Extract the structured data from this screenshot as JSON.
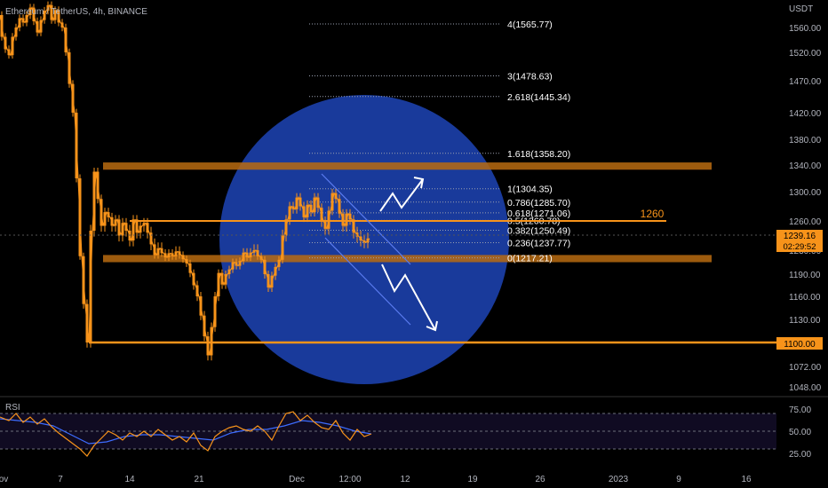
{
  "header": {
    "symbol": "Ethereum / TetherUS, 4h, BINANCE",
    "currency": "USDT"
  },
  "colors": {
    "background": "#000000",
    "candle": "#f7931a",
    "zone": "#b86b10",
    "level_line": "#f7931a",
    "circle": "#1b3fa8",
    "channel": "#4a6fe0",
    "rsi_line": "#f7931a",
    "rsi_ma": "#3d6cff",
    "axis_text": "#b2b5be"
  },
  "chart_data": {
    "type": "candlestick",
    "price_axis": {
      "ticks": [
        "1560.00",
        "1520.00",
        "1470.00",
        "1420.00",
        "1380.00",
        "1340.00",
        "1300.00",
        "1260.00",
        "1230.00",
        "1190.00",
        "1160.00",
        "1130.00",
        "1100.00",
        "1072.00",
        "1048.00"
      ],
      "values": [
        1560,
        1520,
        1470,
        1420,
        1380,
        1340,
        1300,
        1260,
        1230,
        1190,
        1160,
        1130,
        1100,
        1072,
        1048
      ]
    },
    "time_axis": {
      "labels": [
        "ov",
        "7",
        "14",
        "21",
        "Dec",
        "12:00",
        "12",
        "19",
        "26",
        "2023",
        "9",
        "16"
      ]
    },
    "zones": [
      {
        "name": "resistance-zone",
        "from": 1333,
        "to": 1344
      },
      {
        "name": "support-zone",
        "from": 1210,
        "to": 1222
      }
    ],
    "levels": [
      {
        "name": "level-1260",
        "value": 1260,
        "label": "1260"
      },
      {
        "name": "level-1100",
        "value": 1100,
        "label": "1100.00"
      }
    ],
    "fibonacci": [
      {
        "label": "4(1565.77)",
        "value": 1565.77
      },
      {
        "label": "3(1478.63)",
        "value": 1478.63
      },
      {
        "label": "2.618(1445.34)",
        "value": 1445.34
      },
      {
        "label": "1.618(1358.20)",
        "value": 1358.2
      },
      {
        "label": "1(1304.35)",
        "value": 1304.35
      },
      {
        "label": "0.786(1285.70)",
        "value": 1285.7
      },
      {
        "label": "0.618(1271.06)",
        "value": 1271.06
      },
      {
        "label": "0.5(1260.78)",
        "value": 1260.78
      },
      {
        "label": "0.382(1250.49)",
        "value": 1250.49
      },
      {
        "label": "0.236(1237.77)",
        "value": 1237.77
      },
      {
        "label": "0(1217.21)",
        "value": 1217.21
      }
    ],
    "current_price": {
      "value": 1239.16,
      "label": "1239.16",
      "countdown": "02:29:52"
    },
    "price_path": [
      [
        0,
        1580
      ],
      [
        4,
        1545
      ],
      [
        8,
        1525
      ],
      [
        12,
        1515
      ],
      [
        16,
        1545
      ],
      [
        20,
        1560
      ],
      [
        24,
        1575
      ],
      [
        28,
        1568
      ],
      [
        32,
        1580
      ],
      [
        36,
        1592
      ],
      [
        40,
        1570
      ],
      [
        44,
        1552
      ],
      [
        48,
        1572
      ],
      [
        52,
        1587
      ],
      [
        56,
        1596
      ],
      [
        60,
        1572
      ],
      [
        64,
        1588
      ],
      [
        68,
        1568
      ],
      [
        72,
        1560
      ],
      [
        76,
        1520
      ],
      [
        80,
        1465
      ],
      [
        84,
        1420
      ],
      [
        88,
        1320
      ],
      [
        92,
        1220
      ],
      [
        96,
        1150
      ],
      [
        100,
        1100
      ],
      [
        104,
        1250
      ],
      [
        108,
        1330
      ],
      [
        112,
        1290
      ],
      [
        116,
        1255
      ],
      [
        120,
        1272
      ],
      [
        124,
        1265
      ],
      [
        128,
        1255
      ],
      [
        132,
        1262
      ],
      [
        136,
        1245
      ],
      [
        140,
        1258
      ],
      [
        144,
        1250
      ],
      [
        148,
        1240
      ],
      [
        152,
        1262
      ],
      [
        156,
        1248
      ],
      [
        160,
        1255
      ],
      [
        164,
        1258
      ],
      [
        168,
        1248
      ],
      [
        172,
        1236
      ],
      [
        176,
        1222
      ],
      [
        180,
        1232
      ],
      [
        184,
        1225
      ],
      [
        188,
        1218
      ],
      [
        192,
        1225
      ],
      [
        196,
        1220
      ],
      [
        200,
        1228
      ],
      [
        204,
        1222
      ],
      [
        208,
        1215
      ],
      [
        212,
        1208
      ],
      [
        216,
        1192
      ],
      [
        220,
        1175
      ],
      [
        224,
        1160
      ],
      [
        228,
        1135
      ],
      [
        232,
        1108
      ],
      [
        236,
        1085
      ],
      [
        240,
        1120
      ],
      [
        244,
        1160
      ],
      [
        248,
        1192
      ],
      [
        252,
        1176
      ],
      [
        256,
        1190
      ],
      [
        260,
        1198
      ],
      [
        264,
        1210
      ],
      [
        268,
        1204
      ],
      [
        272,
        1212
      ],
      [
        276,
        1226
      ],
      [
        280,
        1218
      ],
      [
        284,
        1226
      ],
      [
        288,
        1230
      ],
      [
        292,
        1220
      ],
      [
        296,
        1214
      ],
      [
        300,
        1190
      ],
      [
        304,
        1172
      ],
      [
        308,
        1188
      ],
      [
        312,
        1202
      ],
      [
        316,
        1214
      ],
      [
        320,
        1245
      ],
      [
        324,
        1262
      ],
      [
        328,
        1280
      ],
      [
        332,
        1276
      ],
      [
        336,
        1292
      ],
      [
        340,
        1280
      ],
      [
        344,
        1265
      ],
      [
        348,
        1282
      ],
      [
        352,
        1272
      ],
      [
        356,
        1292
      ],
      [
        360,
        1278
      ],
      [
        364,
        1260
      ],
      [
        368,
        1252
      ],
      [
        372,
        1274
      ],
      [
        376,
        1298
      ],
      [
        380,
        1290
      ],
      [
        384,
        1270
      ],
      [
        388,
        1255
      ],
      [
        392,
        1270
      ],
      [
        396,
        1262
      ],
      [
        400,
        1248
      ],
      [
        404,
        1244
      ],
      [
        408,
        1240
      ],
      [
        412,
        1238
      ],
      [
        416,
        1242
      ]
    ],
    "rsi": {
      "label": "RSI",
      "ticks": [
        "75.00",
        "50.00",
        "25.00"
      ],
      "tick_values": [
        75,
        50,
        25
      ],
      "bands": [
        70,
        50,
        30
      ],
      "values": [
        [
          0,
          66
        ],
        [
          10,
          62
        ],
        [
          18,
          70
        ],
        [
          26,
          60
        ],
        [
          34,
          66
        ],
        [
          42,
          58
        ],
        [
          50,
          64
        ],
        [
          58,
          55
        ],
        [
          66,
          48
        ],
        [
          74,
          42
        ],
        [
          82,
          36
        ],
        [
          90,
          30
        ],
        [
          98,
          22
        ],
        [
          106,
          34
        ],
        [
          114,
          42
        ],
        [
          122,
          50
        ],
        [
          130,
          46
        ],
        [
          138,
          40
        ],
        [
          146,
          48
        ],
        [
          154,
          44
        ],
        [
          162,
          50
        ],
        [
          170,
          44
        ],
        [
          178,
          52
        ],
        [
          186,
          46
        ],
        [
          194,
          40
        ],
        [
          202,
          44
        ],
        [
          210,
          38
        ],
        [
          218,
          48
        ],
        [
          226,
          34
        ],
        [
          234,
          28
        ],
        [
          242,
          44
        ],
        [
          250,
          50
        ],
        [
          258,
          54
        ],
        [
          266,
          56
        ],
        [
          274,
          52
        ],
        [
          282,
          50
        ],
        [
          290,
          56
        ],
        [
          298,
          50
        ],
        [
          306,
          40
        ],
        [
          314,
          56
        ],
        [
          322,
          70
        ],
        [
          330,
          72
        ],
        [
          338,
          62
        ],
        [
          346,
          68
        ],
        [
          354,
          60
        ],
        [
          362,
          54
        ],
        [
          370,
          52
        ],
        [
          378,
          62
        ],
        [
          386,
          48
        ],
        [
          394,
          40
        ],
        [
          402,
          52
        ],
        [
          410,
          44
        ],
        [
          418,
          47
        ]
      ],
      "ma": [
        [
          0,
          64
        ],
        [
          20,
          62
        ],
        [
          40,
          60
        ],
        [
          60,
          56
        ],
        [
          80,
          46
        ],
        [
          100,
          36
        ],
        [
          120,
          38
        ],
        [
          140,
          44
        ],
        [
          160,
          46
        ],
        [
          180,
          46
        ],
        [
          200,
          44
        ],
        [
          220,
          42
        ],
        [
          240,
          40
        ],
        [
          260,
          48
        ],
        [
          280,
          52
        ],
        [
          300,
          52
        ],
        [
          320,
          56
        ],
        [
          340,
          62
        ],
        [
          360,
          60
        ],
        [
          380,
          56
        ],
        [
          400,
          50
        ],
        [
          418,
          47
        ]
      ]
    }
  }
}
